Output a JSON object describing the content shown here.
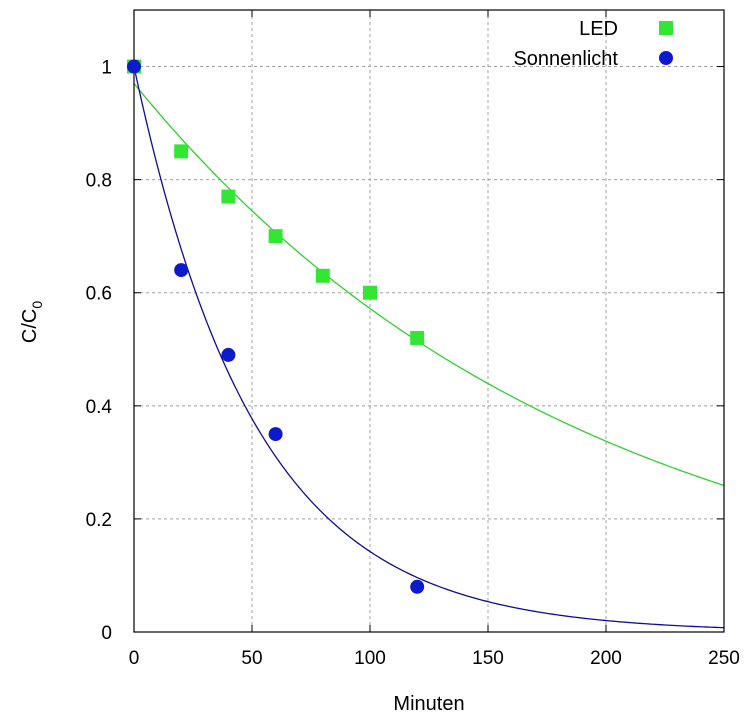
{
  "chart_data": {
    "type": "scatter",
    "title": "",
    "xlabel": "Minuten",
    "ylabel": {
      "main": "C/C",
      "sub": "0"
    },
    "xlim": [
      0,
      250
    ],
    "ylim": [
      0,
      1.1
    ],
    "xticks": [
      0,
      50,
      100,
      150,
      200,
      250
    ],
    "yticks": [
      0,
      0.2,
      0.4,
      0.6,
      0.8,
      1
    ],
    "xtick_labels": [
      "0",
      "50",
      "100",
      "150",
      "200",
      "250"
    ],
    "ytick_labels": [
      "0",
      "0.2",
      "0.4",
      "0.6",
      "0.8",
      "1"
    ],
    "grid": true,
    "legend_position": "top-right",
    "series": [
      {
        "name": "LED",
        "marker": "square",
        "color": "#33e633",
        "x": [
          0,
          20,
          40,
          60,
          80,
          100,
          120
        ],
        "y": [
          1.0,
          0.85,
          0.77,
          0.7,
          0.63,
          0.6,
          0.52
        ],
        "fit": {
          "type": "exponential-decay",
          "a": 0.97,
          "k": 0.00528,
          "color": "#33cc33"
        }
      },
      {
        "name": "Sonnenlicht",
        "marker": "circle",
        "color": "#0d1acc",
        "x": [
          0,
          20,
          40,
          60,
          120
        ],
        "y": [
          1.0,
          0.64,
          0.49,
          0.35,
          0.08
        ],
        "fit": {
          "type": "exponential-decay",
          "a": 1.0,
          "k": 0.0195,
          "color": "#0d0d99"
        }
      }
    ]
  }
}
